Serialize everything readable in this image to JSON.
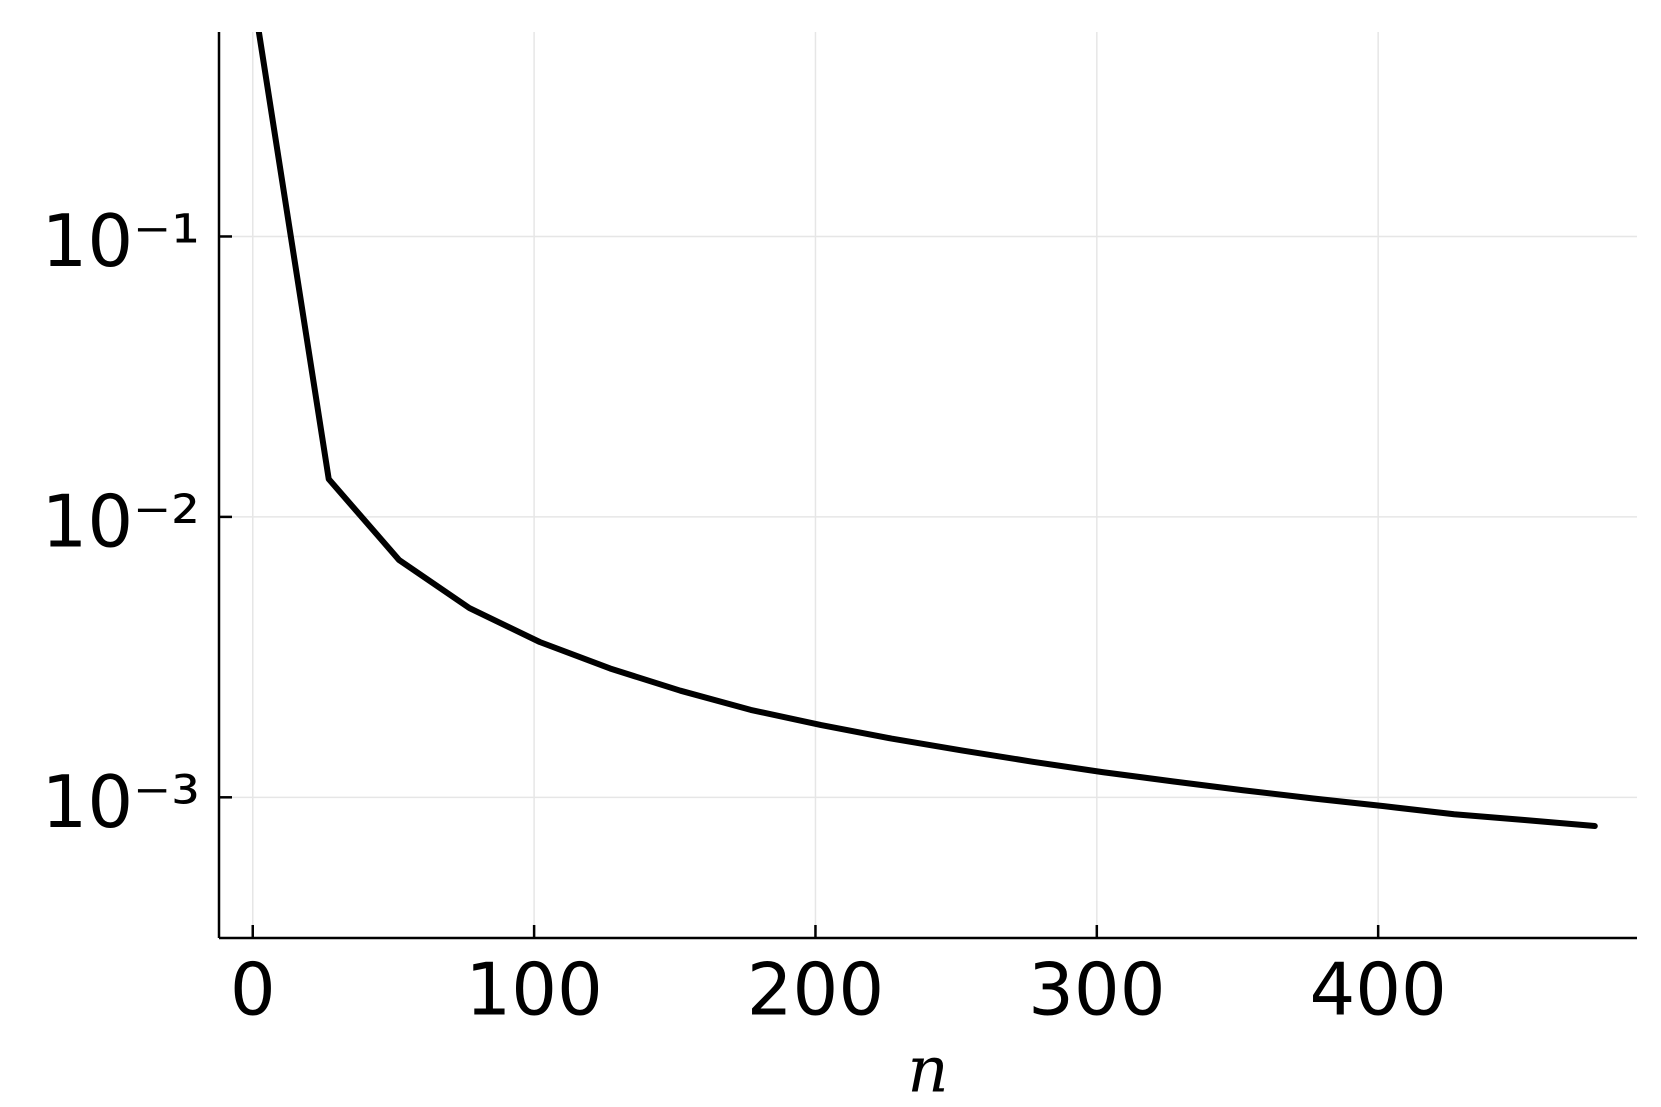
{
  "chart_data": {
    "type": "line",
    "xlabel": "n",
    "x": [
      2,
      27,
      52,
      77,
      102,
      127,
      152,
      177,
      202,
      227,
      252,
      277,
      302,
      327,
      352,
      377,
      402,
      427,
      452,
      477
    ],
    "series": [
      {
        "color": "#000000",
        "values": [
          0.55,
          0.01364,
          0.00702,
          0.00473,
          0.00358,
          0.00288,
          0.0024,
          0.00205,
          0.00181,
          0.00162,
          0.00147,
          0.00134,
          0.00123,
          0.00114,
          0.00106,
          0.00099,
          0.00093,
          0.00087,
          0.00083,
          0.00079
        ]
      }
    ],
    "xlim": [
      -12,
      492
    ],
    "xticks": [
      0,
      100,
      200,
      300,
      400
    ],
    "ylim": [
      0.000315,
      0.536
    ],
    "yscale": "log",
    "yticks": [
      {
        "value": 0.1,
        "label": "10⁻¹"
      },
      {
        "value": 0.01,
        "label": "10⁻²"
      },
      {
        "value": 0.001,
        "label": "10⁻³"
      }
    ],
    "grid": true
  }
}
